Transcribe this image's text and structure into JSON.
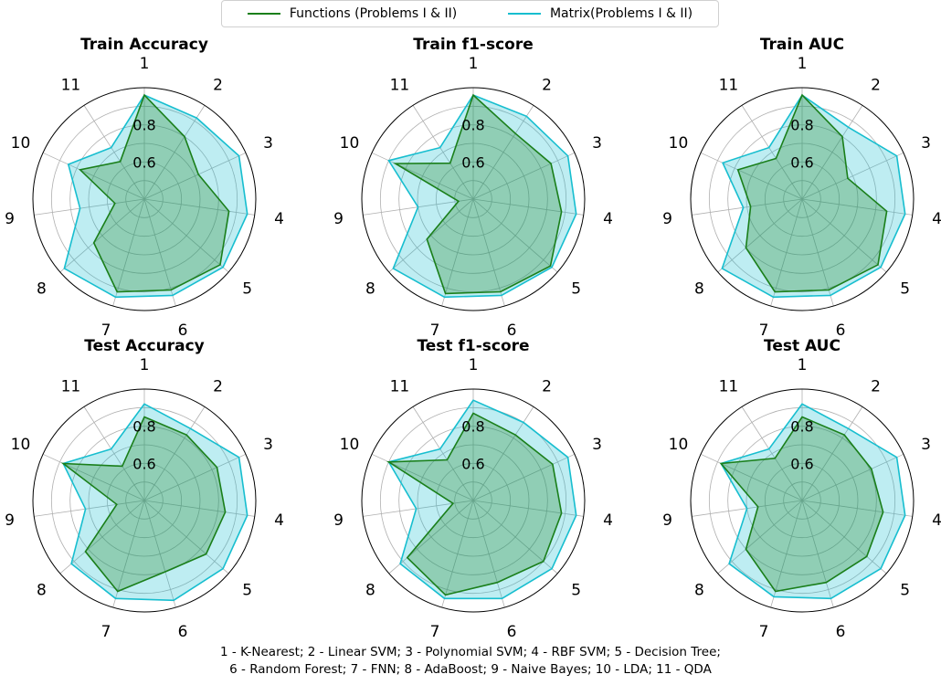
{
  "legend": {
    "functions_label": "Functions (Problems I & II)",
    "matrix_label": "Matrix(Problems I & II)"
  },
  "colors": {
    "functions": "#1a7f1a",
    "matrix": "#17becf",
    "grid": "#b0b0b0"
  },
  "axis_labels": [
    "1",
    "2",
    "3",
    "4",
    "5",
    "6",
    "7",
    "8",
    "9",
    "10",
    "11"
  ],
  "radial_ticks": [
    "0.6",
    "0.8"
  ],
  "chart_data": [
    {
      "type": "radar",
      "title": "Train Accuracy",
      "rlim": [
        0.4,
        1.0
      ],
      "radial_ticks": [
        0.6,
        0.8
      ],
      "series": [
        {
          "name": "Functions (Problems I & II)",
          "values": [
            0.96,
            0.8,
            0.72,
            0.86,
            0.94,
            0.91,
            0.92,
            0.76,
            0.56,
            0.78,
            0.64
          ]
        },
        {
          "name": "Matrix(Problems I & II)",
          "values": [
            0.96,
            0.92,
            0.96,
            0.96,
            0.96,
            0.94,
            0.95,
            0.97,
            0.75,
            0.85,
            0.73
          ]
        }
      ]
    },
    {
      "type": "radar",
      "title": "Train f1-score",
      "rlim": [
        0.4,
        1.0
      ],
      "radial_ticks": [
        0.6,
        0.8
      ],
      "series": [
        {
          "name": "Functions (Problems I & II)",
          "values": [
            0.96,
            0.82,
            0.86,
            0.88,
            0.95,
            0.92,
            0.93,
            0.73,
            0.48,
            0.86,
            0.63
          ]
        },
        {
          "name": "Matrix(Problems I & II)",
          "values": [
            0.96,
            0.93,
            0.96,
            0.96,
            0.96,
            0.94,
            0.95,
            0.97,
            0.7,
            0.9,
            0.73
          ]
        }
      ]
    },
    {
      "type": "radar",
      "title": "Train AUC",
      "rlim": [
        0.4,
        1.0
      ],
      "radial_ticks": [
        0.6,
        0.8
      ],
      "series": [
        {
          "name": "Functions (Problems I & II)",
          "values": [
            0.96,
            0.8,
            0.67,
            0.86,
            0.94,
            0.91,
            0.92,
            0.8,
            0.68,
            0.78,
            0.66
          ]
        },
        {
          "name": "Matrix(Problems I & II)",
          "values": [
            0.96,
            0.86,
            0.96,
            0.96,
            0.96,
            0.94,
            0.95,
            0.97,
            0.72,
            0.87,
            0.73
          ]
        }
      ]
    },
    {
      "type": "radar",
      "title": "Test Accuracy",
      "rlim": [
        0.4,
        1.0
      ],
      "radial_ticks": [
        0.6,
        0.8
      ],
      "series": [
        {
          "name": "Functions (Problems I & II)",
          "values": [
            0.85,
            0.82,
            0.83,
            0.84,
            0.84,
            0.8,
            0.91,
            0.82,
            0.55,
            0.88,
            0.62
          ]
        },
        {
          "name": "Matrix(Problems I & II)",
          "values": [
            0.92,
            0.86,
            0.96,
            0.96,
            0.96,
            0.96,
            0.95,
            0.92,
            0.72,
            0.88,
            0.73
          ]
        }
      ]
    },
    {
      "type": "radar",
      "title": "Test f1-score",
      "rlim": [
        0.4,
        1.0
      ],
      "radial_ticks": [
        0.6,
        0.8
      ],
      "series": [
        {
          "name": "Functions (Problems I & II)",
          "values": [
            0.87,
            0.82,
            0.87,
            0.88,
            0.9,
            0.86,
            0.93,
            0.87,
            0.51,
            0.9,
            0.66
          ]
        },
        {
          "name": "Matrix(Problems I & II)",
          "values": [
            0.94,
            0.9,
            0.96,
            0.96,
            0.96,
            0.95,
            0.95,
            0.92,
            0.71,
            0.9,
            0.73
          ]
        }
      ]
    },
    {
      "type": "radar",
      "title": "Test AUC",
      "rlim": [
        0.4,
        1.0
      ],
      "radial_ticks": [
        0.6,
        0.8
      ],
      "series": [
        {
          "name": "Functions (Problems I & II)",
          "values": [
            0.85,
            0.82,
            0.81,
            0.84,
            0.86,
            0.86,
            0.91,
            0.8,
            0.64,
            0.88,
            0.67
          ]
        },
        {
          "name": "Matrix(Problems I & II)",
          "values": [
            0.92,
            0.86,
            0.96,
            0.96,
            0.96,
            0.95,
            0.94,
            0.92,
            0.7,
            0.88,
            0.73
          ]
        }
      ]
    }
  ],
  "footnote": {
    "line1": "1 - K-Nearest; 2 - Linear SVM; 3 - Polynomial SVM; 4 - RBF SVM; 5 - Decision Tree;",
    "line2": "6 - Random Forest; 7 - FNN; 8 - AdaBoost; 9 - Naive Bayes; 10 - LDA; 11 - QDA"
  }
}
